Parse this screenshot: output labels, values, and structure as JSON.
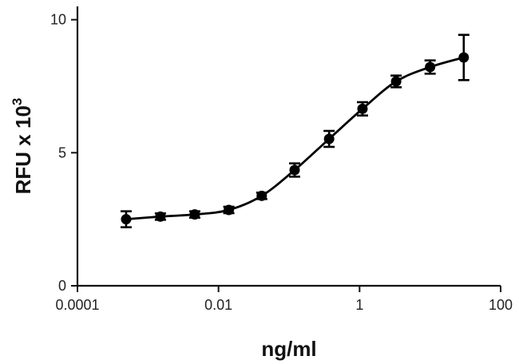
{
  "chart_data": {
    "type": "scatter",
    "title": "",
    "xlabel": "ng/ml",
    "ylabel_main": "RFU x 10",
    "ylabel_sup": "3",
    "x_scale": "log",
    "xlim": [
      0.0001,
      100
    ],
    "ylim": [
      0,
      10.5
    ],
    "x_ticks": [
      {
        "value": 0.0001,
        "label": "0.0001"
      },
      {
        "value": 0.01,
        "label": "0.01"
      },
      {
        "value": 1,
        "label": "1"
      },
      {
        "value": 100,
        "label": "100"
      }
    ],
    "y_ticks": [
      {
        "value": 0,
        "label": "0"
      },
      {
        "value": 5,
        "label": "5"
      },
      {
        "value": 10,
        "label": "10"
      }
    ],
    "grid": false,
    "legend": "none",
    "fit": "sigmoidal",
    "points": [
      {
        "x": 0.00049,
        "y": 2.5,
        "err": 0.3
      },
      {
        "x": 0.0015,
        "y": 2.6,
        "err": 0.12
      },
      {
        "x": 0.0046,
        "y": 2.68,
        "err": 0.12
      },
      {
        "x": 0.014,
        "y": 2.85,
        "err": 0.12
      },
      {
        "x": 0.041,
        "y": 3.38,
        "err": 0.12
      },
      {
        "x": 0.12,
        "y": 4.35,
        "err": 0.25
      },
      {
        "x": 0.37,
        "y": 5.52,
        "err": 0.3
      },
      {
        "x": 1.1,
        "y": 6.65,
        "err": 0.25
      },
      {
        "x": 3.3,
        "y": 7.68,
        "err": 0.22
      },
      {
        "x": 10,
        "y": 8.22,
        "err": 0.25
      },
      {
        "x": 30,
        "y": 8.58,
        "err": 0.85
      }
    ],
    "series_color": "#000000"
  }
}
